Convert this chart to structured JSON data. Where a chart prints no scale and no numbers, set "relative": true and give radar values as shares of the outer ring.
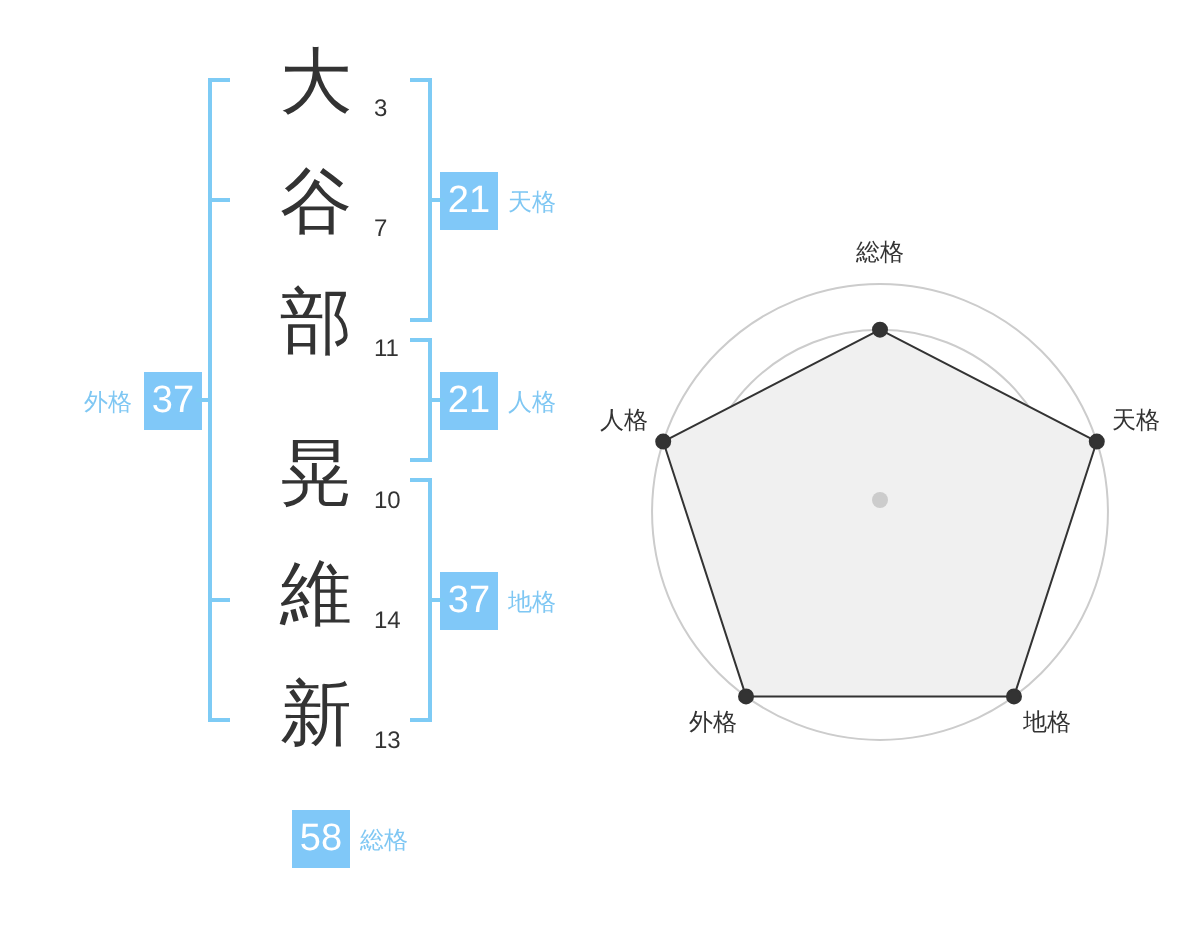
{
  "chart_data": [
    {
      "type": "other",
      "annotations": [
        "大",
        "3",
        "谷",
        "7",
        "部",
        "11",
        "晃",
        "10",
        "維",
        "14",
        "新",
        "13",
        "21",
        "天格",
        "21",
        "人格",
        "37",
        "地格",
        "37",
        "外格",
        "58",
        "総格"
      ]
    },
    {
      "type": "radar",
      "relative": true,
      "categories": [
        "総格",
        "天格",
        "地格",
        "外格",
        "人格"
      ],
      "grid": true,
      "marker": "circle",
      "series": [
        {
          "color": "#333333",
          "values": [
            0.8,
            1,
            1,
            1,
            1
          ]
        }
      ]
    }
  ]
}
